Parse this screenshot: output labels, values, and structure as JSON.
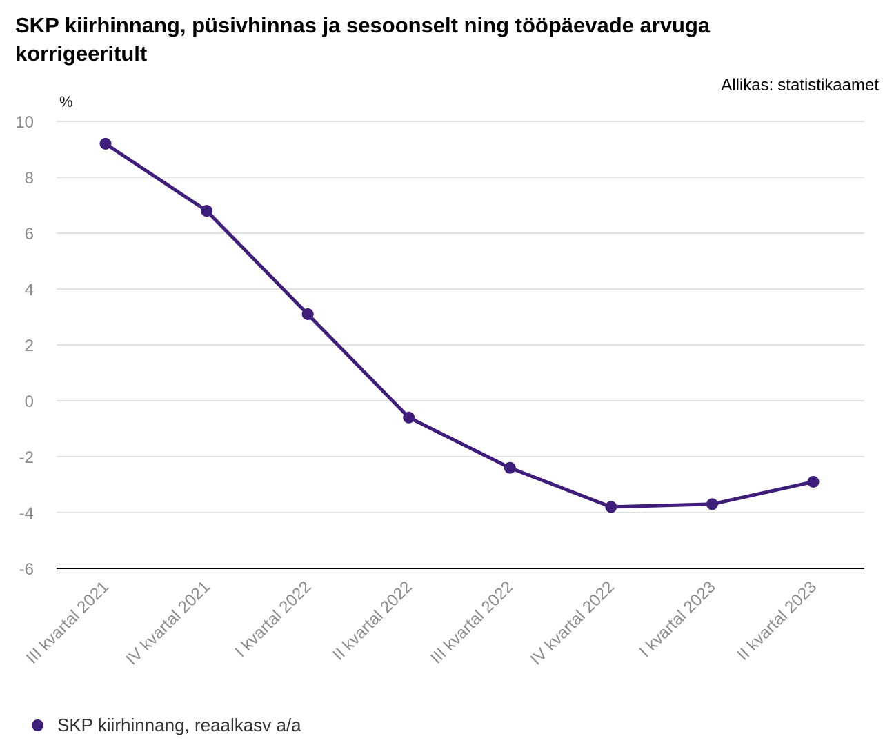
{
  "title": "SKP kiirhinnang, püsivhinnas ja sesoonselt ning tööpäevade arvuga korrigeeritult",
  "source": {
    "label": "Allikas:",
    "value": "statistikaamet"
  },
  "colors": {
    "series": "#3f1d7a",
    "grid": "#d9d9d9",
    "tick": "#8c8c8c",
    "axis": "#000000"
  },
  "chart_data": {
    "type": "line",
    "title": "SKP kiirhinnang, püsivhinnas ja sesoonselt ning tööpäevade arvuga korrigeeritult",
    "ylabel": "%",
    "xlabel": "",
    "ylim": [
      -6,
      10
    ],
    "yticks": [
      -6,
      -4,
      -2,
      0,
      2,
      4,
      6,
      8,
      10
    ],
    "grid": true,
    "categories": [
      "III kvartal 2021",
      "IV kvartal 2021",
      "I kvartal 2022",
      "II kvartal 2022",
      "III kvartal 2022",
      "IV kvartal 2022",
      "I kvartal 2023",
      "II kvartal 2023"
    ],
    "series": [
      {
        "name": "SKP kiirhinnang, reaalkasv a/a",
        "values": [
          9.2,
          6.8,
          3.1,
          -0.6,
          -2.4,
          -3.8,
          -3.7,
          -2.9
        ]
      }
    ],
    "legend_position": "bottom-left"
  }
}
